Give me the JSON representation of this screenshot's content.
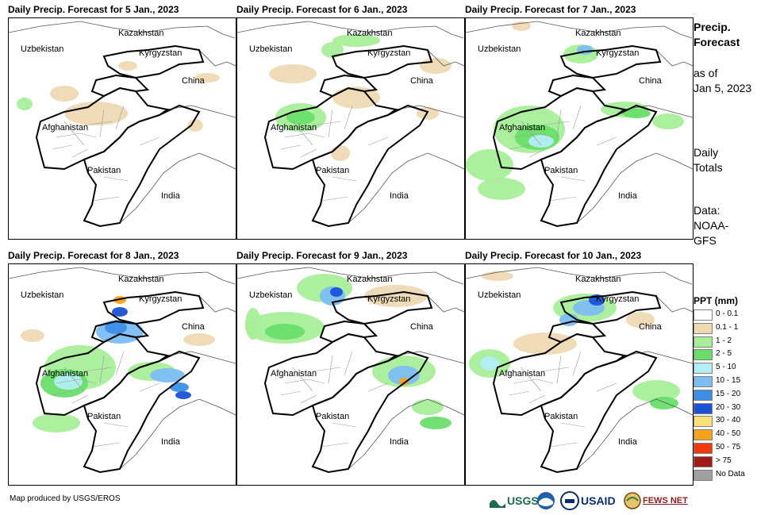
{
  "panels": [
    {
      "title": "Daily Precip. Forecast for 5 Jan., 2023",
      "labels": [
        "Kazakhstan",
        "Uzbekistan",
        "Kyrgyzstan",
        "China",
        "Afghanistan",
        "Pakistan",
        "India"
      ]
    },
    {
      "title": "Daily Precip. Forecast for 6 Jan., 2023",
      "labels": [
        "Kazakhstan",
        "Uzbekistan",
        "Kyrgyzstan",
        "China",
        "Afghanistan",
        "Pakistan",
        "India"
      ]
    },
    {
      "title": "Daily Precip. Forecast for 7 Jan., 2023",
      "labels": [
        "Kazakhstan",
        "Uzbekistan",
        "Kyrgyzstan",
        "China",
        "Afghanistan",
        "Pakistan",
        "India"
      ]
    },
    {
      "title": "Daily Precip. Forecast for 8 Jan., 2023",
      "labels": [
        "Kazakhstan",
        "Uzbekistan",
        "Kyrgyzstan",
        "China",
        "Afghanistan",
        "Pakistan",
        "India"
      ]
    },
    {
      "title": "Daily Precip. Forecast for 9 Jan., 2023",
      "labels": [
        "Kazakhstan",
        "Uzbekistan",
        "Kyrgyzstan",
        "China",
        "Afghanistan",
        "Pakistan",
        "India"
      ]
    },
    {
      "title": "Daily Precip. Forecast for 10 Jan., 2023",
      "labels": [
        "Kazakhstan",
        "Uzbekistan",
        "Kyrgyzstan",
        "China",
        "Afghanistan",
        "Pakistan",
        "India"
      ]
    }
  ],
  "side": {
    "title_line1": "Precip.",
    "title_line2": "Forecast",
    "asof_line1": "as of",
    "asof_line2": "Jan 5, 2023",
    "daily_line1": "Daily",
    "daily_line2": "Totals",
    "data_line1": "Data:",
    "data_line2": "NOAA-",
    "data_line3": "GFS"
  },
  "legend": {
    "title": "PPT (mm)",
    "items": [
      {
        "label": "0 - 0.1",
        "color": "#ffffff"
      },
      {
        "label": "0.1 - 1",
        "color": "#eed9b3"
      },
      {
        "label": "1 - 2",
        "color": "#a8ee9a"
      },
      {
        "label": "2 - 5",
        "color": "#6ade6a"
      },
      {
        "label": "5 - 10",
        "color": "#b3eef5"
      },
      {
        "label": "10 - 15",
        "color": "#7cbdf2"
      },
      {
        "label": "15 - 20",
        "color": "#3e8ee8"
      },
      {
        "label": "20 - 30",
        "color": "#1a52d6"
      },
      {
        "label": "30 - 40",
        "color": "#fbe07a"
      },
      {
        "label": "40 - 50",
        "color": "#f5a418"
      },
      {
        "label": "50 - 75",
        "color": "#ee3b0e"
      },
      {
        "label": "> 75",
        "color": "#a31a1a"
      },
      {
        "label": "No Data",
        "color": "#a0a0a0"
      }
    ]
  },
  "footer": "Map produced by USGS/EROS",
  "logos": {
    "usgs": "USGS",
    "usaid": "USAID",
    "fewsnet": "FEWS NET"
  }
}
